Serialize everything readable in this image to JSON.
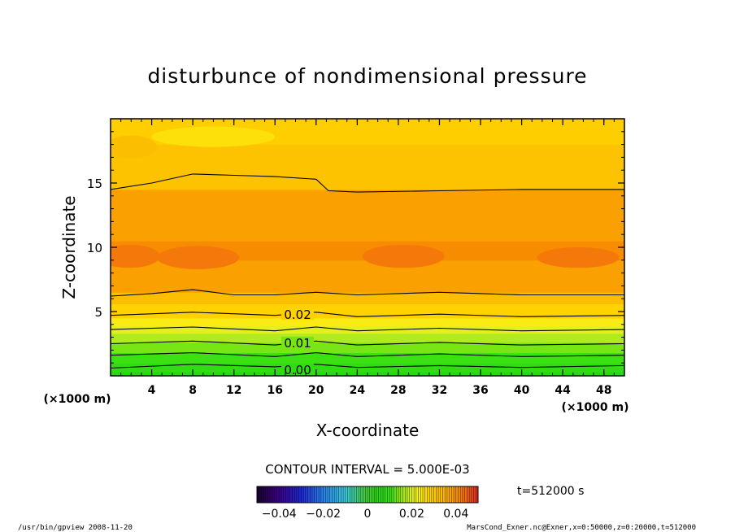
{
  "chart_data": {
    "type": "contour",
    "title": "disturbunce of nondimensional pressure",
    "xlabel": "X-coordinate",
    "ylabel": "Z-coordinate",
    "x_unit": "(×1000 m)",
    "y_unit": "(×1000 m)",
    "xlim": [
      0,
      50
    ],
    "ylim": [
      0,
      20
    ],
    "x_ticks": [
      4,
      8,
      12,
      16,
      20,
      24,
      28,
      32,
      36,
      40,
      44,
      48
    ],
    "y_ticks": [
      5,
      10,
      15
    ],
    "contour_interval_text": "CONTOUR INTERVAL = 5.000E-03",
    "time_label": "t=512000 s",
    "colorbar": {
      "range": [
        -0.05,
        0.05
      ],
      "tick_values": [
        -0.04,
        -0.02,
        0,
        0.02,
        0.04
      ],
      "tick_labels": [
        "−0.04",
        "−0.02",
        "0",
        "0.02",
        "0.04"
      ]
    },
    "contour_labels": [
      {
        "text": "0.02",
        "x": 18.2,
        "y": 4.8
      },
      {
        "text": "0.01",
        "x": 18.2,
        "y": 2.6
      },
      {
        "text": "0.00",
        "x": 18.2,
        "y": 0.5
      }
    ],
    "field_bands": [
      {
        "z_top": 0.3,
        "value": 0.005
      },
      {
        "z_top": 1.0,
        "value": 0.0075
      },
      {
        "z_top": 1.8,
        "value": 0.0105
      },
      {
        "z_top": 2.6,
        "value": 0.0135
      },
      {
        "z_top": 3.3,
        "value": 0.017
      },
      {
        "z_top": 3.9,
        "value": 0.0205
      },
      {
        "z_top": 4.5,
        "value": 0.024
      },
      {
        "z_top": 5.6,
        "value": 0.028
      },
      {
        "z_top": 6.5,
        "value": 0.033
      },
      {
        "z_top": 9.0,
        "value": 0.038
      },
      {
        "z_top": 10.5,
        "value": 0.041
      },
      {
        "z_top": 14.5,
        "value": 0.038
      },
      {
        "z_top": 18.0,
        "value": 0.032
      },
      {
        "z_top": 20.0,
        "value": 0.029
      }
    ],
    "contour_lines": [
      {
        "value": 0.0,
        "points": [
          [
            0,
            0.6
          ],
          [
            8,
            0.9
          ],
          [
            16,
            0.7
          ],
          [
            20,
            0.9
          ],
          [
            24,
            0.65
          ],
          [
            32,
            0.8
          ],
          [
            40,
            0.65
          ],
          [
            50,
            0.8
          ]
        ]
      },
      {
        "value": 0.005,
        "points": [
          [
            0,
            1.6
          ],
          [
            8,
            1.8
          ],
          [
            16,
            1.5
          ],
          [
            20,
            1.8
          ],
          [
            24,
            1.5
          ],
          [
            32,
            1.7
          ],
          [
            40,
            1.5
          ],
          [
            50,
            1.6
          ]
        ]
      },
      {
        "value": 0.01,
        "points": [
          [
            0,
            2.5
          ],
          [
            8,
            2.7
          ],
          [
            16,
            2.4
          ],
          [
            20,
            2.7
          ],
          [
            24,
            2.4
          ],
          [
            32,
            2.6
          ],
          [
            40,
            2.4
          ],
          [
            50,
            2.5
          ]
        ]
      },
      {
        "value": 0.015,
        "points": [
          [
            0,
            3.6
          ],
          [
            8,
            3.8
          ],
          [
            16,
            3.5
          ],
          [
            20,
            3.8
          ],
          [
            24,
            3.5
          ],
          [
            32,
            3.7
          ],
          [
            40,
            3.5
          ],
          [
            50,
            3.6
          ]
        ]
      },
      {
        "value": 0.02,
        "points": [
          [
            0,
            4.7
          ],
          [
            8,
            4.95
          ],
          [
            16,
            4.7
          ],
          [
            20,
            4.95
          ],
          [
            24,
            4.6
          ],
          [
            32,
            4.8
          ],
          [
            40,
            4.6
          ],
          [
            50,
            4.7
          ]
        ]
      },
      {
        "value": 0.025,
        "points": [
          [
            0,
            6.2
          ],
          [
            4,
            6.4
          ],
          [
            8,
            6.7
          ],
          [
            12,
            6.3
          ],
          [
            16,
            6.3
          ],
          [
            20,
            6.5
          ],
          [
            24,
            6.3
          ],
          [
            32,
            6.5
          ],
          [
            40,
            6.3
          ],
          [
            50,
            6.3
          ]
        ]
      },
      {
        "value": 0.035,
        "points": [
          [
            0,
            14.5
          ],
          [
            4,
            15.0
          ],
          [
            8,
            15.7
          ],
          [
            12,
            15.6
          ],
          [
            16,
            15.5
          ],
          [
            20,
            15.3
          ],
          [
            21.2,
            14.4
          ],
          [
            24,
            14.3
          ],
          [
            32,
            14.4
          ],
          [
            40,
            14.5
          ],
          [
            50,
            14.5
          ]
        ]
      }
    ],
    "cells": [
      {
        "x": 8.5,
        "y": 9.2,
        "rx": 4.0,
        "ry": 0.9,
        "value": 0.043
      },
      {
        "x": 1.8,
        "y": 9.3,
        "rx": 3.0,
        "ry": 0.9,
        "value": 0.043
      },
      {
        "x": 28.5,
        "y": 9.3,
        "rx": 4.0,
        "ry": 0.9,
        "value": 0.043
      },
      {
        "x": 45.5,
        "y": 9.2,
        "rx": 4.0,
        "ry": 0.8,
        "value": 0.043
      },
      {
        "x": 10.0,
        "y": 18.6,
        "rx": 6.0,
        "ry": 0.8,
        "value": 0.026
      },
      {
        "x": 2.0,
        "y": 17.8,
        "rx": 2.5,
        "ry": 0.9,
        "value": 0.033
      }
    ]
  },
  "footer": {
    "left": "/usr/bin/gpview  2008-11-20",
    "right": "MarsCond_Exner.nc@Exner,x=0:50000,z=0:20000,t=512000"
  }
}
